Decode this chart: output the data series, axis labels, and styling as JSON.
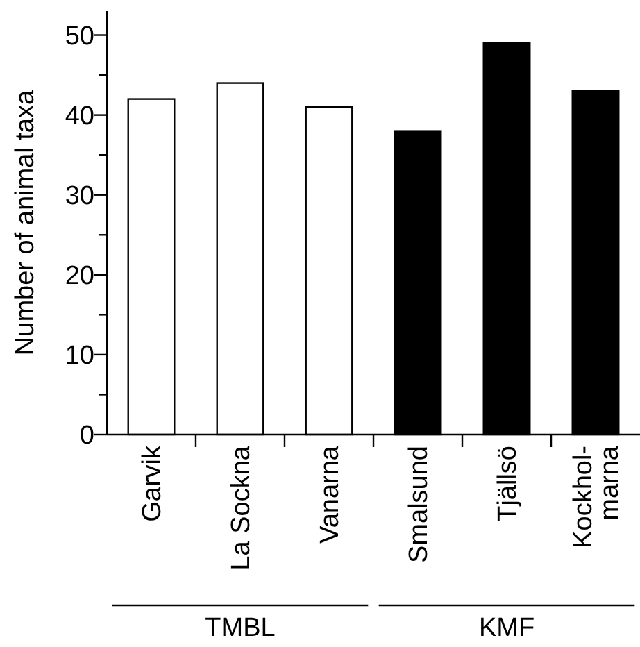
{
  "chart_data": {
    "type": "bar",
    "ylabel": "Number of animal taxa",
    "categories": [
      "Garvik",
      "La Sockna",
      "Vanarna",
      "Smalsund",
      "Tjällsö",
      "Kockhol-\nmarna"
    ],
    "values": [
      42,
      44,
      41,
      38,
      49,
      43
    ],
    "colors": [
      "#ffffff",
      "#ffffff",
      "#ffffff",
      "#000000",
      "#000000",
      "#000000"
    ],
    "ylim": [
      0,
      53
    ],
    "yticks": [
      0,
      {
        "value": 5,
        "label": null
      },
      10,
      {
        "value": 15,
        "label": null
      },
      20,
      {
        "value": 25,
        "label": null
      },
      30,
      {
        "value": 35,
        "label": null
      },
      40,
      {
        "value": 45,
        "label": null
      },
      50
    ],
    "grid": false,
    "annotations": [
      "TMBL",
      "KMF"
    ]
  }
}
